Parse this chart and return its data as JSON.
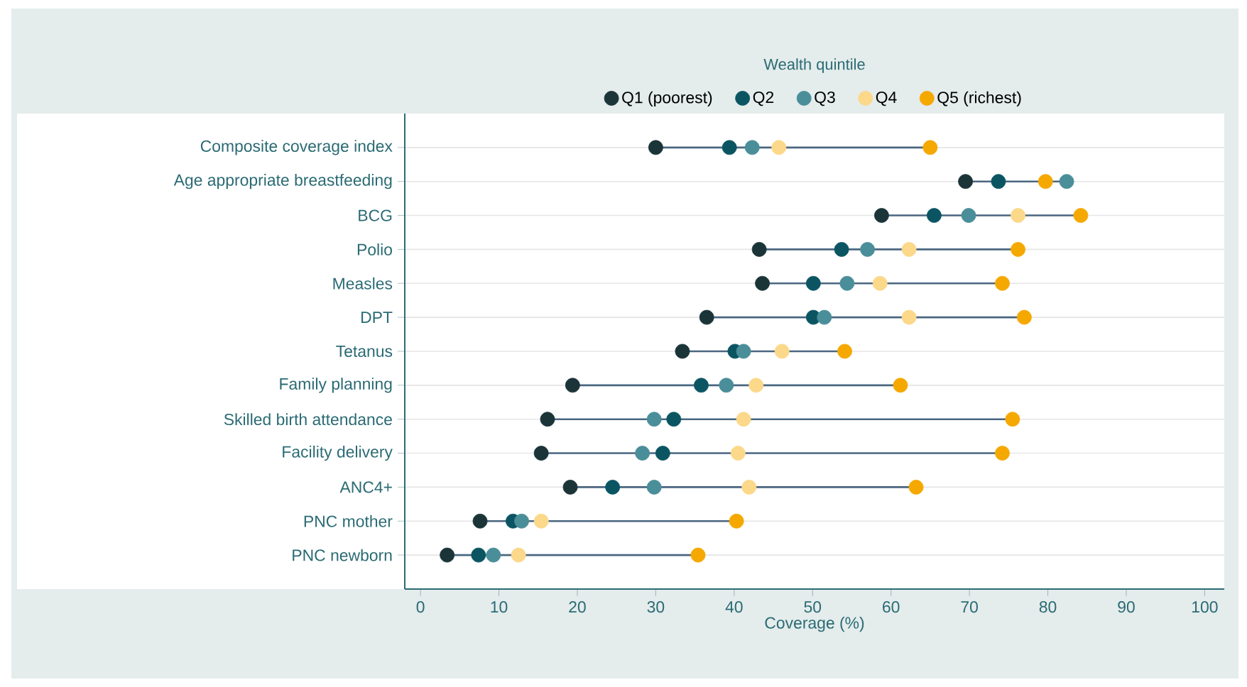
{
  "chart_data": {
    "type": "scatter",
    "orientation": "horizontal",
    "categories": [
      "Composite coverage index",
      "Age appropriate breastfeeding",
      "BCG",
      "Polio",
      "Measles",
      "DPT",
      "Tetanus",
      "Family planning",
      "Skilled birth attendance",
      "Facility delivery",
      "ANC4+",
      "PNC mother",
      "PNC newborn"
    ],
    "series": [
      {
        "name": "Q1 (poorest)",
        "color": "#1a3438",
        "values": [
          30.0,
          69.5,
          58.8,
          43.2,
          43.6,
          36.5,
          33.4,
          19.4,
          16.2,
          15.4,
          19.1,
          7.6,
          3.4
        ]
      },
      {
        "name": "Q2",
        "color": "#0b5563",
        "values": [
          39.4,
          73.7,
          65.5,
          53.7,
          50.1,
          50.1,
          40.1,
          35.8,
          32.3,
          30.9,
          24.5,
          11.8,
          7.4
        ]
      },
      {
        "name": "Q3",
        "color": "#4a8e99",
        "values": [
          42.3,
          82.4,
          69.9,
          57.0,
          54.4,
          51.5,
          41.2,
          39.0,
          29.8,
          28.3,
          29.8,
          12.9,
          9.3
        ]
      },
      {
        "name": "Q4",
        "color": "#fbd88a",
        "values": [
          45.7,
          null,
          76.2,
          62.3,
          58.6,
          62.3,
          46.1,
          42.8,
          41.2,
          40.5,
          41.9,
          15.4,
          12.5
        ]
      },
      {
        "name": "Q5 (richest)",
        "color": "#f5a800",
        "values": [
          65.0,
          79.7,
          84.2,
          76.2,
          74.2,
          77.0,
          54.1,
          61.2,
          75.5,
          74.2,
          63.2,
          40.3,
          35.4
        ]
      }
    ],
    "xlabel": "Coverage (%)",
    "legend_title": "Wealth quintile",
    "xlim": [
      -2,
      102.5
    ],
    "xticks": [
      0,
      10,
      20,
      30,
      40,
      50,
      60,
      70,
      80,
      90,
      100
    ],
    "grid": "y",
    "legend": "top",
    "marker": "circle"
  }
}
